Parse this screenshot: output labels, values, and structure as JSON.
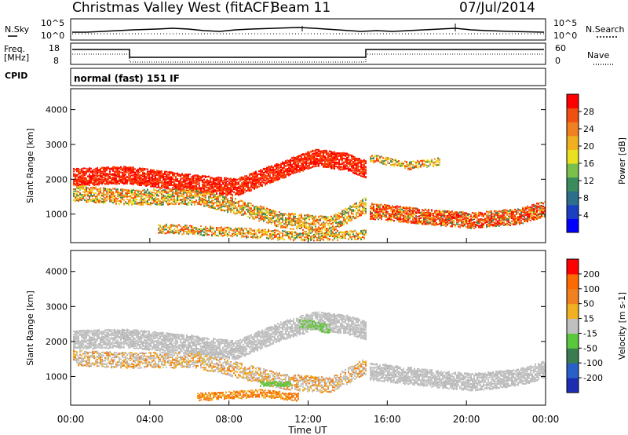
{
  "header": {
    "title": "Christmas Valley West (fitACF)",
    "beam": "Beam 11",
    "date": "07/Jul/2014"
  },
  "noise_panel": {
    "left_label": "N.Sky",
    "right_label": "N.Search",
    "left_ticks": [
      "10^5",
      "10^0"
    ],
    "right_ticks": [
      "10^5",
      "10^0"
    ]
  },
  "freq_panel": {
    "left_label_1": "Freq.",
    "left_label_2": "[MHz]",
    "right_label": "Nave",
    "left_ticks": [
      "18",
      "8"
    ],
    "right_ticks": [
      "60",
      "0"
    ]
  },
  "cpid": {
    "label": "CPID",
    "value": "normal (fast) 151 IF"
  },
  "chart_data": [
    {
      "type": "heatmap",
      "ylabel": "Slant Range [km]",
      "xlim": [
        "00:00",
        "24:00"
      ],
      "ylim": [
        180,
        4600
      ],
      "yticks": [
        1000,
        2000,
        3000,
        4000
      ],
      "colorbar": {
        "label": "Power [dB]",
        "ticks": [
          "28",
          "24",
          "20",
          "16",
          "12",
          "8",
          "4"
        ],
        "colors": [
          "#0000ff",
          "#1a3fc0",
          "#2c6e8c",
          "#3a8c5c",
          "#7ac04a",
          "#e8e020",
          "#f0b020",
          "#f08020",
          "#f05010",
          "#ff0000"
        ]
      }
    },
    {
      "type": "heatmap",
      "ylabel": "Slant Range [km]",
      "xlabel": "Time UT",
      "xticks": [
        "00:00",
        "04:00",
        "08:00",
        "12:00",
        "16:00",
        "20:00",
        "00:00"
      ],
      "ylim": [
        180,
        4600
      ],
      "yticks": [
        1000,
        2000,
        3000,
        4000
      ],
      "colorbar": {
        "label": "Velocity [m s-1]",
        "ticks": [
          "200",
          "100",
          "50",
          "15",
          "-15",
          "-50",
          "-100",
          "-200"
        ],
        "colors": [
          "#1c2db4",
          "#2860c8",
          "#3a7c50",
          "#5ac83c",
          "#c0c0c0",
          "#f0b020",
          "#f08020",
          "#ff6a00",
          "#ff0000"
        ]
      }
    }
  ]
}
